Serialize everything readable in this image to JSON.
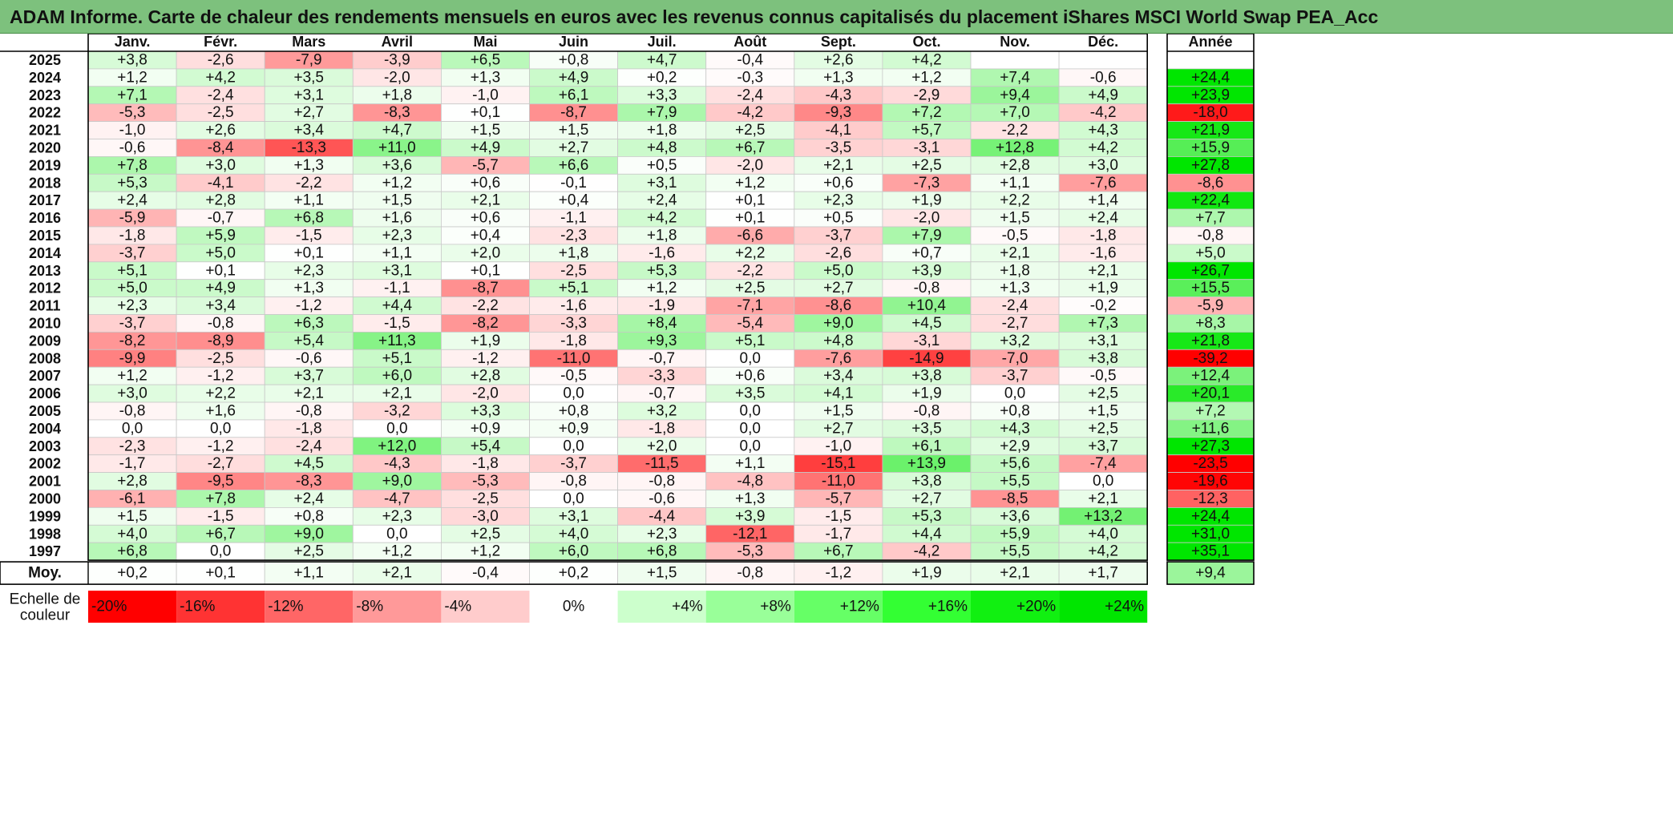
{
  "title": "ADAM Informe. Carte de chaleur des rendements mensuels en euros avec les revenus connus capitalisés du placement iShares MSCI World Swap PEA_Acc",
  "chart_data": {
    "type": "heatmap",
    "months": [
      "Janv.",
      "Févr.",
      "Mars",
      "Avril",
      "Mai",
      "Juin",
      "Juil.",
      "Août",
      "Sept.",
      "Oct.",
      "Nov.",
      "Déc."
    ],
    "annual_header": "Année",
    "rows": [
      {
        "year": "2025",
        "values": [
          "+3,8",
          "-2,6",
          "-7,9",
          "-3,9",
          "+6,5",
          "+0,8",
          "+4,7",
          "-0,4",
          "+2,6",
          "+4,2",
          "",
          ""
        ],
        "annual": ""
      },
      {
        "year": "2024",
        "values": [
          "+1,2",
          "+4,2",
          "+3,5",
          "-2,0",
          "+1,3",
          "+4,9",
          "+0,2",
          "-0,3",
          "+1,3",
          "+1,2",
          "+7,4",
          "-0,6"
        ],
        "annual": "+24,4"
      },
      {
        "year": "2023",
        "values": [
          "+7,1",
          "-2,4",
          "+3,1",
          "+1,8",
          "-1,0",
          "+6,1",
          "+3,3",
          "-2,4",
          "-4,3",
          "-2,9",
          "+9,4",
          "+4,9"
        ],
        "annual": "+23,9"
      },
      {
        "year": "2022",
        "values": [
          "-5,3",
          "-2,5",
          "+2,7",
          "-8,3",
          "+0,1",
          "-8,7",
          "+7,9",
          "-4,2",
          "-9,3",
          "+7,2",
          "+7,0",
          "-4,2"
        ],
        "annual": "-18,0"
      },
      {
        "year": "2021",
        "values": [
          "-1,0",
          "+2,6",
          "+3,4",
          "+4,7",
          "+1,5",
          "+1,5",
          "+1,8",
          "+2,5",
          "-4,1",
          "+5,7",
          "-2,2",
          "+4,3"
        ],
        "annual": "+21,9"
      },
      {
        "year": "2020",
        "values": [
          "-0,6",
          "-8,4",
          "-13,3",
          "+11,0",
          "+4,9",
          "+2,7",
          "+4,8",
          "+6,7",
          "-3,5",
          "-3,1",
          "+12,8",
          "+4,2"
        ],
        "annual": "+15,9"
      },
      {
        "year": "2019",
        "values": [
          "+7,8",
          "+3,0",
          "+1,3",
          "+3,6",
          "-5,7",
          "+6,6",
          "+0,5",
          "-2,0",
          "+2,1",
          "+2,5",
          "+2,8",
          "+3,0"
        ],
        "annual": "+27,8"
      },
      {
        "year": "2018",
        "values": [
          "+5,3",
          "-4,1",
          "-2,2",
          "+1,2",
          "+0,6",
          "-0,1",
          "+3,1",
          "+1,2",
          "+0,6",
          "-7,3",
          "+1,1",
          "-7,6"
        ],
        "annual": "-8,6"
      },
      {
        "year": "2017",
        "values": [
          "+2,4",
          "+2,8",
          "+1,1",
          "+1,5",
          "+2,1",
          "+0,4",
          "+2,4",
          "+0,1",
          "+2,3",
          "+1,9",
          "+2,2",
          "+1,4"
        ],
        "annual": "+22,4"
      },
      {
        "year": "2016",
        "values": [
          "-5,9",
          "-0,7",
          "+6,8",
          "+1,6",
          "+0,6",
          "-1,1",
          "+4,2",
          "+0,1",
          "+0,5",
          "-2,0",
          "+1,5",
          "+2,4"
        ],
        "annual": "+7,7"
      },
      {
        "year": "2015",
        "values": [
          "-1,8",
          "+5,9",
          "-1,5",
          "+2,3",
          "+0,4",
          "-2,3",
          "+1,8",
          "-6,6",
          "-3,7",
          "+7,9",
          "-0,5",
          "-1,8"
        ],
        "annual": "-0,8"
      },
      {
        "year": "2014",
        "values": [
          "-3,7",
          "+5,0",
          "+0,1",
          "+1,1",
          "+2,0",
          "+1,8",
          "-1,6",
          "+2,2",
          "-2,6",
          "+0,7",
          "+2,1",
          "-1,6"
        ],
        "annual": "+5,0"
      },
      {
        "year": "2013",
        "values": [
          "+5,1",
          "+0,1",
          "+2,3",
          "+3,1",
          "+0,1",
          "-2,5",
          "+5,3",
          "-2,2",
          "+5,0",
          "+3,9",
          "+1,8",
          "+2,1"
        ],
        "annual": "+26,7"
      },
      {
        "year": "2012",
        "values": [
          "+5,0",
          "+4,9",
          "+1,3",
          "-1,1",
          "-8,7",
          "+5,1",
          "+1,2",
          "+2,5",
          "+2,7",
          "-0,8",
          "+1,3",
          "+1,9"
        ],
        "annual": "+15,5"
      },
      {
        "year": "2011",
        "values": [
          "+2,3",
          "+3,4",
          "-1,2",
          "+4,4",
          "-2,2",
          "-1,6",
          "-1,9",
          "-7,1",
          "-8,6",
          "+10,4",
          "-2,4",
          "-0,2"
        ],
        "annual": "-5,9"
      },
      {
        "year": "2010",
        "values": [
          "-3,7",
          "-0,8",
          "+6,3",
          "-1,5",
          "-8,2",
          "-3,3",
          "+8,4",
          "-5,4",
          "+9,0",
          "+4,5",
          "-2,7",
          "+7,3"
        ],
        "annual": "+8,3"
      },
      {
        "year": "2009",
        "values": [
          "-8,2",
          "-8,9",
          "+5,4",
          "+11,3",
          "+1,9",
          "-1,8",
          "+9,3",
          "+5,1",
          "+4,8",
          "-3,1",
          "+3,2",
          "+3,1"
        ],
        "annual": "+21,8"
      },
      {
        "year": "2008",
        "values": [
          "-9,9",
          "-2,5",
          "-0,6",
          "+5,1",
          "-1,2",
          "-11,0",
          "-0,7",
          "0,0",
          "-7,6",
          "-14,9",
          "-7,0",
          "+3,8"
        ],
        "annual": "-39,2"
      },
      {
        "year": "2007",
        "values": [
          "+1,2",
          "-1,2",
          "+3,7",
          "+6,0",
          "+2,8",
          "-0,5",
          "-3,3",
          "+0,6",
          "+3,4",
          "+3,8",
          "-3,7",
          "-0,5"
        ],
        "annual": "+12,4"
      },
      {
        "year": "2006",
        "values": [
          "+3,0",
          "+2,2",
          "+2,1",
          "+2,1",
          "-2,0",
          "0,0",
          "-0,7",
          "+3,5",
          "+4,1",
          "+1,9",
          "0,0",
          "+2,5"
        ],
        "annual": "+20,1"
      },
      {
        "year": "2005",
        "values": [
          "-0,8",
          "+1,6",
          "-0,8",
          "-3,2",
          "+3,3",
          "+0,8",
          "+3,2",
          "0,0",
          "+1,5",
          "-0,8",
          "+0,8",
          "+1,5"
        ],
        "annual": "+7,2"
      },
      {
        "year": "2004",
        "values": [
          "0,0",
          "0,0",
          "-1,8",
          "0,0",
          "+0,9",
          "+0,9",
          "-1,8",
          "0,0",
          "+2,7",
          "+3,5",
          "+4,3",
          "+2,5"
        ],
        "annual": "+11,6"
      },
      {
        "year": "2003",
        "values": [
          "-2,3",
          "-1,2",
          "-2,4",
          "+12,0",
          "+5,4",
          "0,0",
          "+2,0",
          "0,0",
          "-1,0",
          "+6,1",
          "+2,9",
          "+3,7"
        ],
        "annual": "+27,3"
      },
      {
        "year": "2002",
        "values": [
          "-1,7",
          "-2,7",
          "+4,5",
          "-4,3",
          "-1,8",
          "-3,7",
          "-11,5",
          "+1,1",
          "-15,1",
          "+13,9",
          "+5,6",
          "-7,4"
        ],
        "annual": "-23,5"
      },
      {
        "year": "2001",
        "values": [
          "+2,8",
          "-9,5",
          "-8,3",
          "+9,0",
          "-5,3",
          "-0,8",
          "-0,8",
          "-4,8",
          "-11,0",
          "+3,8",
          "+5,5",
          "0,0"
        ],
        "annual": "-19,6"
      },
      {
        "year": "2000",
        "values": [
          "-6,1",
          "+7,8",
          "+2,4",
          "-4,7",
          "-2,5",
          "0,0",
          "-0,6",
          "+1,3",
          "-5,7",
          "+2,7",
          "-8,5",
          "+2,1"
        ],
        "annual": "-12,3"
      },
      {
        "year": "1999",
        "values": [
          "+1,5",
          "-1,5",
          "+0,8",
          "+2,3",
          "-3,0",
          "+3,1",
          "-4,4",
          "+3,9",
          "-1,5",
          "+5,3",
          "+3,6",
          "+13,2"
        ],
        "annual": "+24,4"
      },
      {
        "year": "1998",
        "values": [
          "+4,0",
          "+6,7",
          "+9,0",
          "0,0",
          "+2,5",
          "+4,0",
          "+2,3",
          "-12,1",
          "-1,7",
          "+4,4",
          "+5,9",
          "+4,0"
        ],
        "annual": "+31,0"
      },
      {
        "year": "1997",
        "values": [
          "+6,8",
          "0,0",
          "+2,5",
          "+1,2",
          "+1,2",
          "+6,0",
          "+6,8",
          "-5,3",
          "+6,7",
          "-4,2",
          "+5,5",
          "+4,2"
        ],
        "annual": "+35,1"
      }
    ],
    "average": {
      "label": "Moy.",
      "values": [
        "+0,2",
        "+0,1",
        "+1,1",
        "+2,1",
        "-0,4",
        "+0,2",
        "+1,5",
        "-0,8",
        "-1,2",
        "+1,9",
        "+2,1",
        "+1,7"
      ],
      "annual": "+9,4"
    },
    "scale": {
      "label_line1": "Echelle de",
      "label_line2": "couleur",
      "entries": [
        {
          "label": "-20%",
          "value": -20,
          "color": "#ff0000"
        },
        {
          "label": "-16%",
          "value": -16,
          "color": "#ff3333"
        },
        {
          "label": "-12%",
          "value": -12,
          "color": "#ff6666"
        },
        {
          "label": "-8%",
          "value": -8,
          "color": "#ff9999"
        },
        {
          "label": "-4%",
          "value": -4,
          "color": "#ffcccc"
        },
        {
          "label": "0%",
          "value": 0,
          "color": "#ffffff"
        },
        {
          "label": "+4%",
          "value": 4,
          "color": "#ccffcc"
        },
        {
          "label": "+8%",
          "value": 8,
          "color": "#99ff99"
        },
        {
          "label": "+12%",
          "value": 12,
          "color": "#66ff66"
        },
        {
          "label": "+16%",
          "value": 16,
          "color": "#33ff33"
        },
        {
          "label": "+20%",
          "value": 20,
          "color": "#11f011"
        },
        {
          "label": "+24%",
          "value": 24,
          "color": "#00e600"
        }
      ]
    }
  }
}
